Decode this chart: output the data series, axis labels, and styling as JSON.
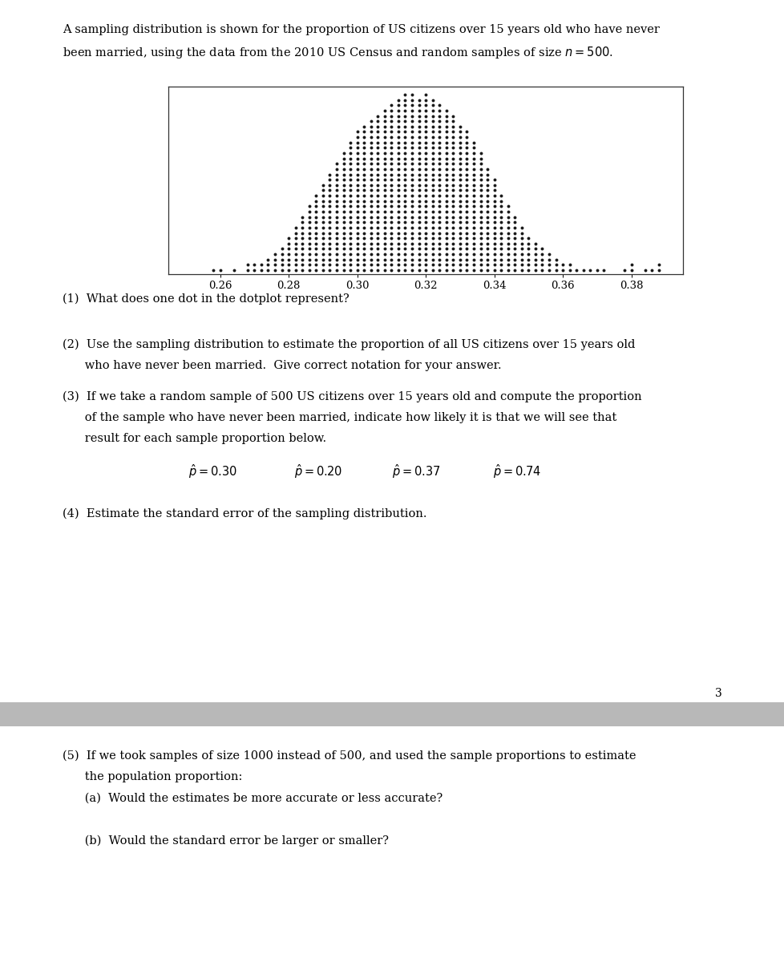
{
  "header_line1": "A sampling distribution is shown for the proportion of US citizens over 15 years old who have never",
  "header_line2": "been married, using the data from the 2010 US Census and random samples of size $n = 500$.",
  "q1": "(1)  What does one dot in the dotplot represent?",
  "q2_line1": "(2)  Use the sampling distribution to estimate the proportion of all US citizens over 15 years old",
  "q2_line2": "      who have never been married.  Give correct notation for your answer.",
  "q3_line1": "(3)  If we take a random sample of 500 US citizens over 15 years old and compute the proportion",
  "q3_line2": "      of the sample who have never been married, indicate how likely it is that we will see that",
  "q3_line3": "      result for each sample proportion below.",
  "q3_hats": [
    "$\\hat{p} = 0.30$",
    "$\\hat{p} = 0.20$",
    "$\\hat{p} = 0.37$",
    "$\\hat{p} = 0.74$"
  ],
  "q4": "(4)  Estimate the standard error of the sampling distribution.",
  "q5_line1": "(5)  If we took samples of size 1000 instead of 500, and used the sample proportions to estimate",
  "q5_line2": "      the population proportion:",
  "q5a": "      (a)  Would the estimates be more accurate or less accurate?",
  "q5b": "      (b)  Would the standard error be larger or smaller?",
  "page_num": "3",
  "dot_color": "#1a1a1a",
  "background_white": "#ffffff",
  "background_gray": "#b8b8b8",
  "dotplot_xlim": [
    0.245,
    0.395
  ],
  "dotplot_xticks": [
    0.26,
    0.28,
    0.3,
    0.32,
    0.34,
    0.36,
    0.38
  ],
  "distribution": {
    "0.258": 1,
    "0.260": 1,
    "0.262": 0,
    "0.264": 1,
    "0.266": 0,
    "0.268": 2,
    "0.270": 2,
    "0.272": 2,
    "0.274": 3,
    "0.276": 4,
    "0.278": 5,
    "0.280": 7,
    "0.282": 9,
    "0.284": 11,
    "0.286": 13,
    "0.288": 15,
    "0.290": 17,
    "0.292": 19,
    "0.294": 21,
    "0.296": 23,
    "0.298": 25,
    "0.300": 27,
    "0.302": 28,
    "0.304": 29,
    "0.306": 30,
    "0.308": 31,
    "0.310": 32,
    "0.312": 33,
    "0.314": 34,
    "0.316": 34,
    "0.318": 33,
    "0.320": 34,
    "0.322": 33,
    "0.324": 32,
    "0.326": 31,
    "0.328": 30,
    "0.330": 28,
    "0.332": 27,
    "0.334": 25,
    "0.336": 23,
    "0.338": 20,
    "0.340": 18,
    "0.342": 15,
    "0.344": 13,
    "0.346": 11,
    "0.348": 9,
    "0.350": 7,
    "0.352": 6,
    "0.354": 5,
    "0.356": 4,
    "0.358": 3,
    "0.360": 2,
    "0.362": 2,
    "0.364": 1,
    "0.366": 1,
    "0.368": 1,
    "0.370": 1,
    "0.372": 1,
    "0.374": 0,
    "0.376": 0,
    "0.378": 1,
    "0.380": 2,
    "0.382": 0,
    "0.384": 1,
    "0.386": 1,
    "0.388": 2
  },
  "font_size": 10.5,
  "tick_font_size": 9.5
}
